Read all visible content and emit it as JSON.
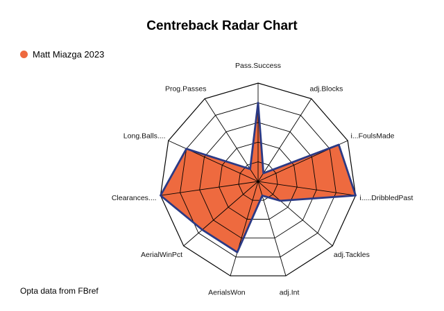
{
  "chart_data": {
    "type": "radar",
    "title": "Centreback Radar Chart",
    "axes": [
      "Pass.Success",
      "adj.Blocks",
      "i...FoulsMade",
      "i.....DribbledPast",
      "adj.Tackles",
      "adj.Int",
      "AerialsWon",
      "AerialWinPct",
      "Clearances....",
      "Long.Balls....",
      "Prog.Passes"
    ],
    "rings": 5,
    "rmax": 1,
    "series": [
      {
        "name": "Matt Miazga 2023",
        "color": "#ee6a3f",
        "stroke": "#2b3a85",
        "values": [
          0.8,
          0.1,
          0.9,
          1.0,
          0.3,
          0.15,
          0.75,
          0.75,
          1.0,
          0.8,
          0.15
        ]
      }
    ]
  },
  "caption": "Opta data from FBref"
}
